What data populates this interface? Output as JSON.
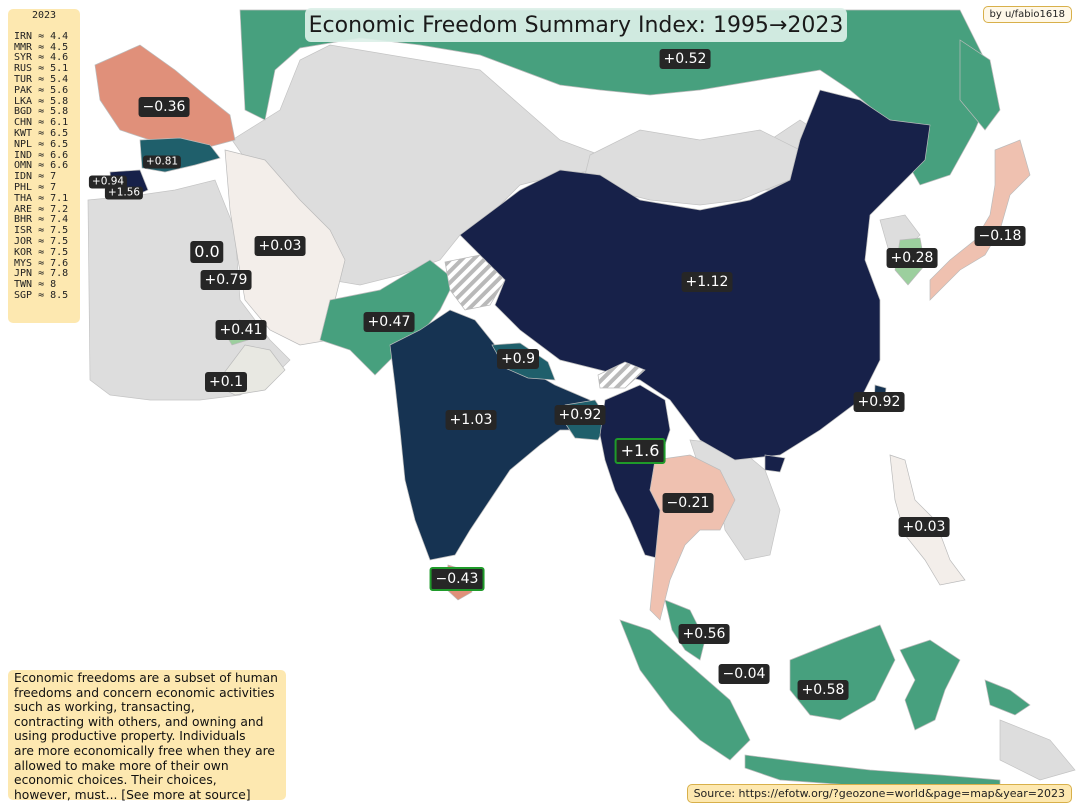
{
  "title": "Economic Freedom Summary Index:  1995→2023",
  "credit": "by u/fabio1618",
  "legend": {
    "year": "2023",
    "entries": [
      {
        "code": "IRN",
        "value": "4.4"
      },
      {
        "code": "MMR",
        "value": "4.5"
      },
      {
        "code": "SYR",
        "value": "4.6"
      },
      {
        "code": "RUS",
        "value": "5.1"
      },
      {
        "code": "TUR",
        "value": "5.4"
      },
      {
        "code": "PAK",
        "value": "5.6"
      },
      {
        "code": "LKA",
        "value": "5.8"
      },
      {
        "code": "BGD",
        "value": "5.8"
      },
      {
        "code": "CHN",
        "value": "6.1"
      },
      {
        "code": "KWT",
        "value": "6.5"
      },
      {
        "code": "NPL",
        "value": "6.5"
      },
      {
        "code": "IND",
        "value": "6.6"
      },
      {
        "code": "OMN",
        "value": "6.6"
      },
      {
        "code": "IDN",
        "value": "7"
      },
      {
        "code": "PHL",
        "value": "7"
      },
      {
        "code": "THA",
        "value": "7.1"
      },
      {
        "code": "ARE",
        "value": "7.2"
      },
      {
        "code": "BHR",
        "value": "7.4"
      },
      {
        "code": "ISR",
        "value": "7.5"
      },
      {
        "code": "JOR",
        "value": "7.5"
      },
      {
        "code": "KOR",
        "value": "7.5"
      },
      {
        "code": "MYS",
        "value": "7.6"
      },
      {
        "code": "JPN",
        "value": "7.8"
      },
      {
        "code": "TWN",
        "value": "8"
      },
      {
        "code": "SGP",
        "value": "8.5"
      }
    ]
  },
  "description": "Economic freedoms are a subset of human freedoms and concern economic activities such as working, transacting, contracting with others, and owning and using productive property. Individuals are more economically free when they are allowed to make more of their own economic choices. Their choices, however, must... [See more at source]",
  "description_lines": [
    "Economic freedoms are a subset of human",
    "freedoms and concern economic activities",
    "such as working, transacting,",
    "contracting with others, and owning and",
    "using productive property. Individuals",
    "are more economically free when they are",
    "allowed to make more of their own",
    "economic choices. Their choices,",
    "however, must... [See more at source]"
  ],
  "source": "Source: https://efotw.org/?geozone=world&page=map&year=2023",
  "colors": {
    "ocean": "#ffffff",
    "nodata": "#dddddd",
    "border": "#bbbbbb",
    "neg_strong": "#e0907a",
    "neg_light": "#efc1b0",
    "neutral": "#f3eeea",
    "pos_light": "#9ccf9e",
    "pos_mid": "#47a07e",
    "pos_teal": "#1f5f6b",
    "pos_navy": "#163352",
    "pos_darknavy": "#172149",
    "label_bg": "#262626",
    "highlight": "#1f9a2a"
  },
  "labels": [
    {
      "text": "+0.52",
      "size": "normal",
      "hl": false
    },
    {
      "text": "−0.36",
      "size": "normal",
      "hl": false
    },
    {
      "text": "+0.81",
      "size": "small",
      "hl": false
    },
    {
      "text": "+0.94",
      "size": "small",
      "hl": false
    },
    {
      "text": "+1.56",
      "size": "small",
      "hl": false
    },
    {
      "text": "0.0",
      "size": "big",
      "hl": false
    },
    {
      "text": "+0.03",
      "size": "normal",
      "hl": false
    },
    {
      "text": "+0.79",
      "size": "normal",
      "hl": false
    },
    {
      "text": "+0.41",
      "size": "normal",
      "hl": false
    },
    {
      "text": "+0.1",
      "size": "normal",
      "hl": false
    },
    {
      "text": "+0.47",
      "size": "normal",
      "hl": false
    },
    {
      "text": "+0.9",
      "size": "normal",
      "hl": false
    },
    {
      "text": "+1.03",
      "size": "normal",
      "hl": false
    },
    {
      "text": "+0.92",
      "size": "normal",
      "hl": false
    },
    {
      "text": "+1.6",
      "size": "big",
      "hl": true
    },
    {
      "text": "−0.21",
      "size": "normal",
      "hl": false
    },
    {
      "text": "−0.43",
      "size": "normal",
      "hl": true
    },
    {
      "text": "+1.12",
      "size": "normal",
      "hl": false
    },
    {
      "text": "+0.28",
      "size": "normal",
      "hl": false
    },
    {
      "text": "−0.18",
      "size": "normal",
      "hl": false
    },
    {
      "text": "+0.92",
      "size": "normal",
      "hl": false
    },
    {
      "text": "+0.03",
      "size": "normal",
      "hl": false
    },
    {
      "text": "+0.56",
      "size": "normal",
      "hl": false
    },
    {
      "text": "−0.04",
      "size": "normal",
      "hl": false
    },
    {
      "text": "+0.58",
      "size": "normal",
      "hl": false
    }
  ]
}
